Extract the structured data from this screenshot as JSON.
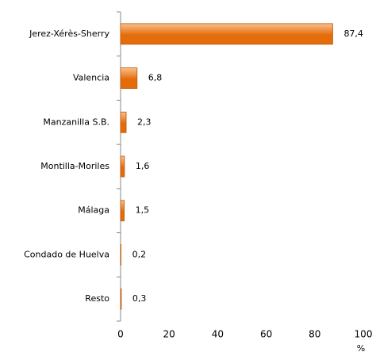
{
  "chart_data": {
    "type": "bar",
    "orientation": "horizontal",
    "categories": [
      "Jerez-Xérès-Sherry",
      "Valencia",
      "Manzanilla S.B.",
      "Montilla-Moriles",
      "Málaga",
      "Condado de Huelva",
      "Resto"
    ],
    "values": [
      87.4,
      6.8,
      2.3,
      1.6,
      1.5,
      0.2,
      0.3
    ],
    "value_labels": [
      "87,4",
      "6,8",
      "2,3",
      "1,6",
      "1,5",
      "0,2",
      "0,3"
    ],
    "color": "#e46c0a",
    "xlabel": "%",
    "xlim": [
      0,
      100
    ],
    "xticks": [
      0,
      20,
      40,
      60,
      80,
      100
    ],
    "grid": false
  }
}
